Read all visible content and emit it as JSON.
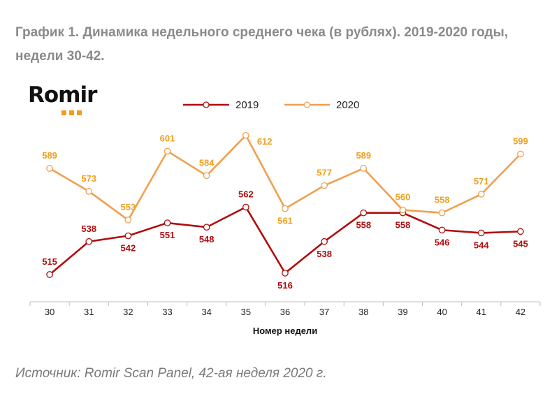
{
  "header": {
    "title": "График 1. Динамика недельного среднего чека (в рублях). 2019-2020 годы, недели 30-42."
  },
  "logo": {
    "text": "Romir"
  },
  "source": {
    "text": "Источник: Romir Scan Panel, 42-ая неделя 2020 г."
  },
  "colors": {
    "series_2019": "#b00d0d",
    "series_2020": "#f0a050",
    "label_2020": "#f0a020",
    "axis": "#bfbfbf",
    "title": "#8a8a8a",
    "logo_accent": "#f29b1f"
  },
  "chart_data": {
    "type": "line",
    "title": "",
    "xlabel": "Номер недели",
    "ylabel": "",
    "categories": [
      "30",
      "31",
      "32",
      "33",
      "34",
      "35",
      "36",
      "37",
      "38",
      "39",
      "40",
      "41",
      "42"
    ],
    "series": [
      {
        "name": "2019",
        "values": [
          515,
          538,
          542,
          551,
          548,
          562,
          516,
          538,
          558,
          558,
          546,
          544,
          545
        ]
      },
      {
        "name": "2020",
        "values": [
          589,
          573,
          553,
          601,
          584,
          612,
          561,
          577,
          589,
          560,
          558,
          571,
          599
        ]
      }
    ],
    "ylim": [
      496,
      627
    ],
    "y_axis_visible": false,
    "grid": false,
    "legend": "top-center",
    "data_labels": true,
    "markers": "hollow-circle"
  }
}
